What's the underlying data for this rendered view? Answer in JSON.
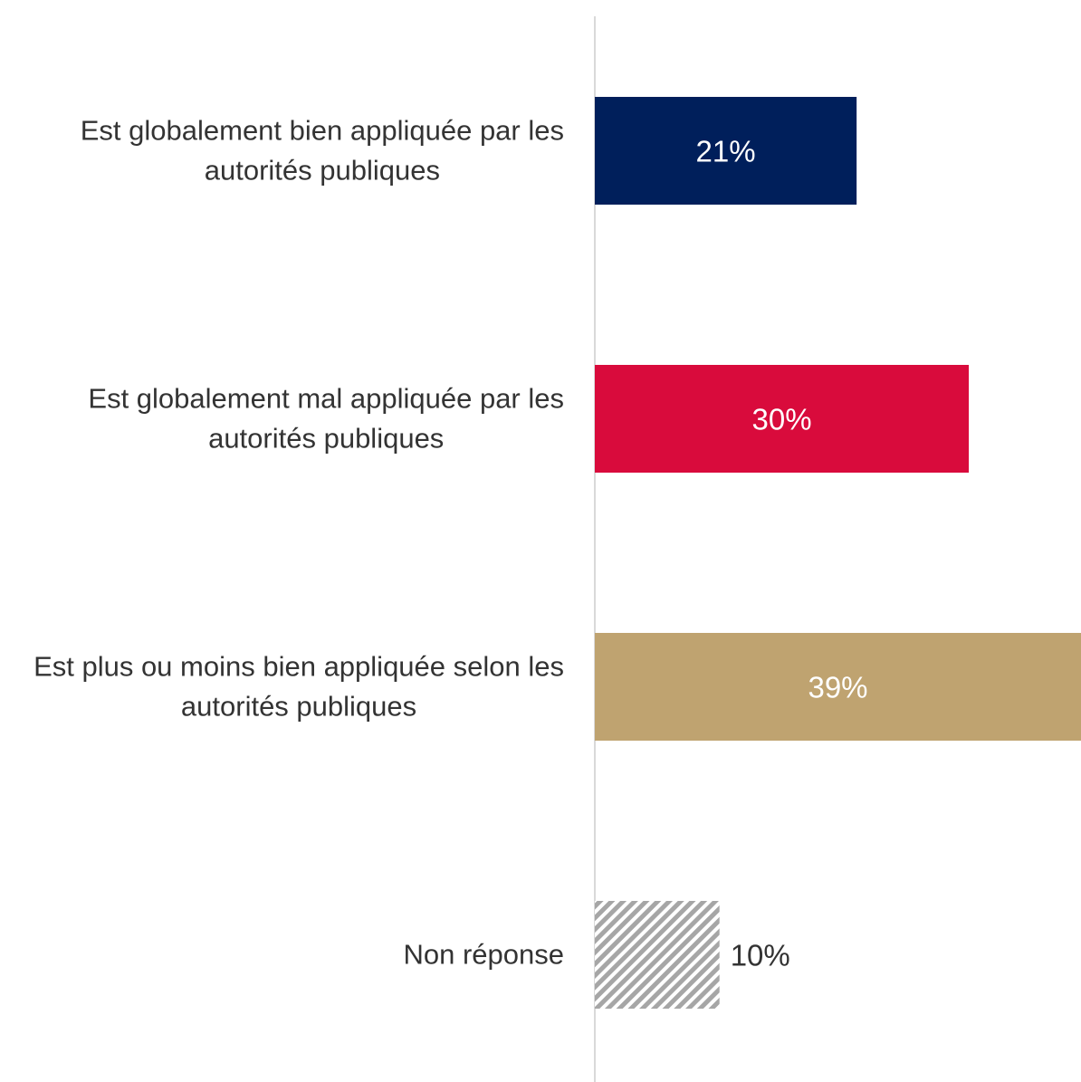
{
  "chart_data": {
    "type": "bar",
    "orientation": "horizontal",
    "categories": [
      [
        "Est globalement bien appliquée par les",
        "autorités publiques"
      ],
      [
        "Est globalement mal appliquée par les",
        "autorités publiques"
      ],
      [
        "Est plus ou moins bien appliquée selon les",
        "autorités publiques"
      ],
      [
        "Non réponse"
      ]
    ],
    "values": [
      21,
      30,
      39,
      10
    ],
    "value_labels": [
      "21%",
      "30%",
      "39%",
      "10%"
    ],
    "colors": [
      "#001f5b",
      "#d90b3c",
      "#bfa370",
      "#a6a6a6"
    ],
    "patterns": [
      "solid",
      "solid",
      "solid",
      "hatched"
    ],
    "xlim": [
      0,
      39
    ],
    "title": "",
    "xlabel": "",
    "ylabel": "",
    "grid": false,
    "legend": "none"
  }
}
